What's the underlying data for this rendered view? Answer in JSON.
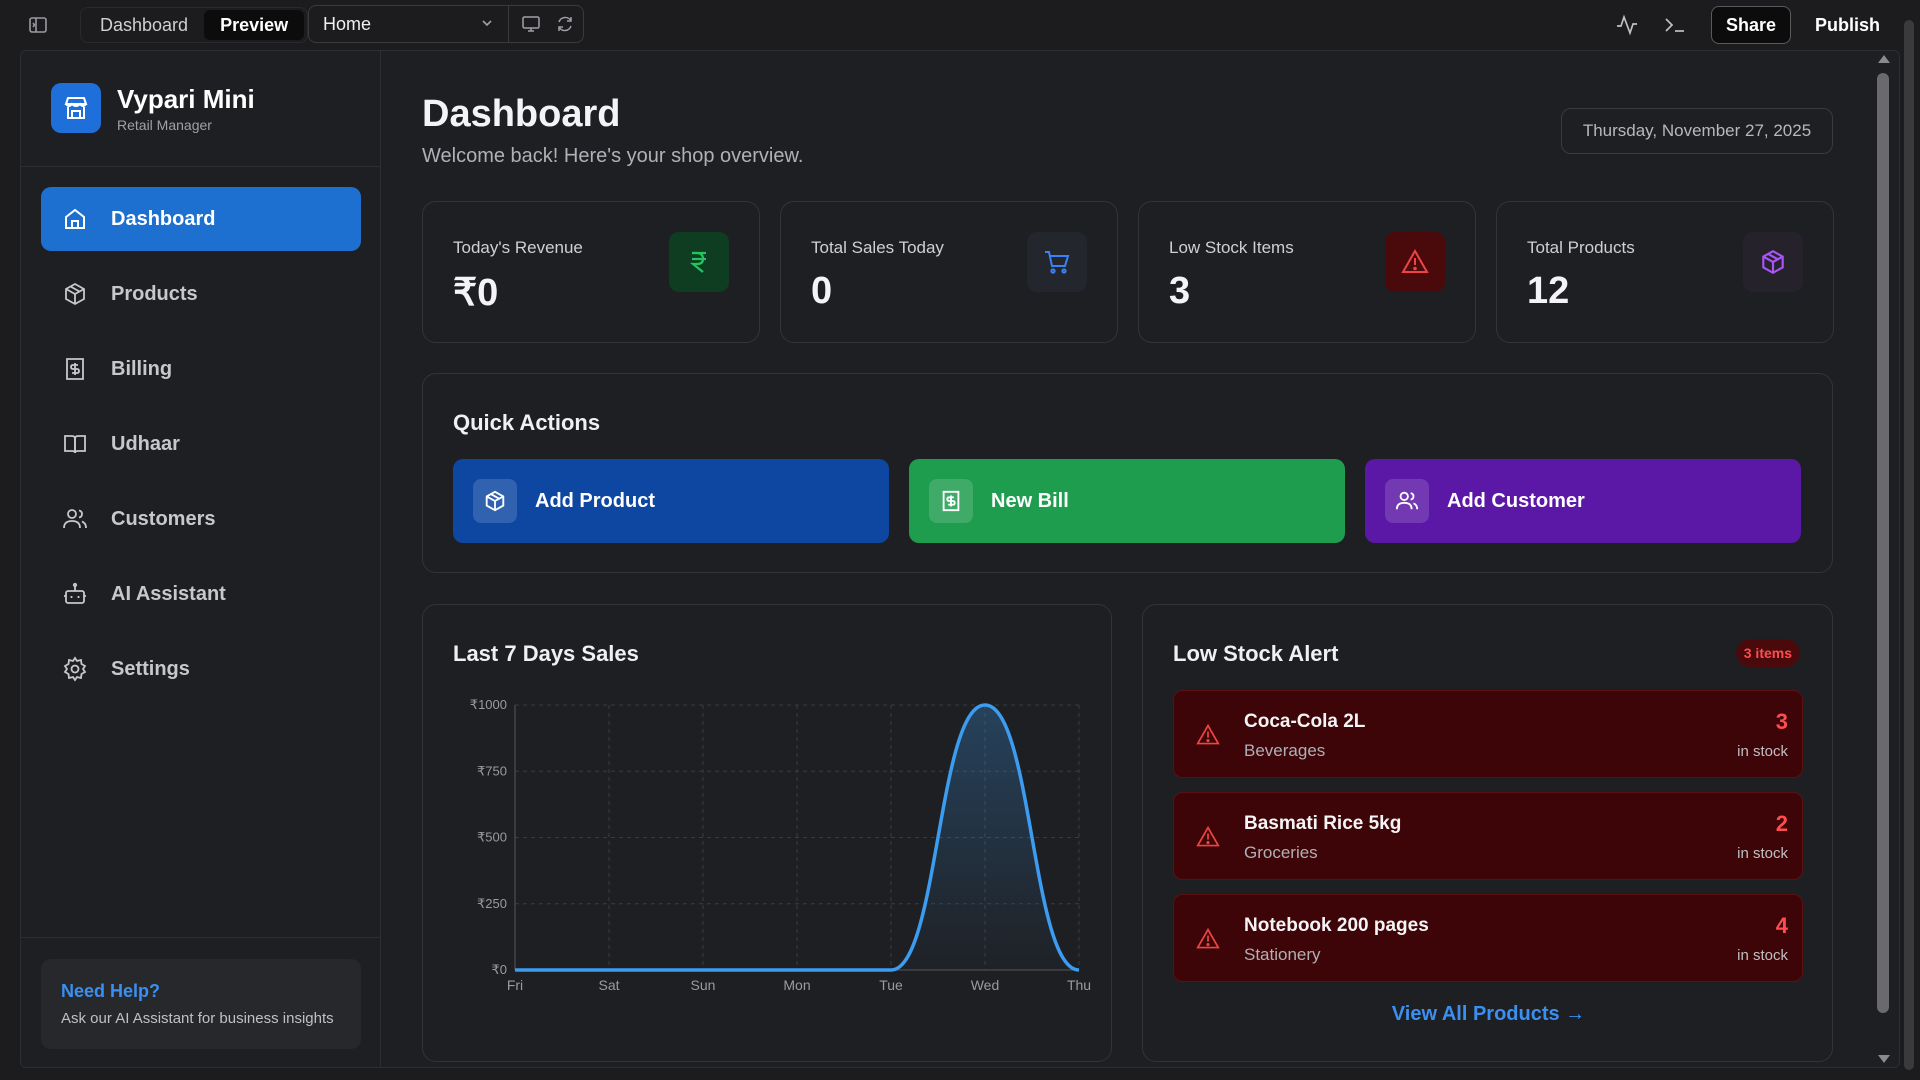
{
  "topbar": {
    "tabs": [
      {
        "label": "Dashboard",
        "active": false
      },
      {
        "label": "Preview",
        "active": true
      }
    ],
    "route": "Home",
    "share_label": "Share",
    "publish_label": "Publish"
  },
  "brand": {
    "name": "Vypari Mini",
    "subtitle": "Retail Manager"
  },
  "sidebar": {
    "items": [
      {
        "label": "Dashboard",
        "icon": "home-icon",
        "active": true
      },
      {
        "label": "Products",
        "icon": "package-icon",
        "active": false
      },
      {
        "label": "Billing",
        "icon": "receipt-icon",
        "active": false
      },
      {
        "label": "Udhaar",
        "icon": "book-icon",
        "active": false
      },
      {
        "label": "Customers",
        "icon": "users-icon",
        "active": false
      },
      {
        "label": "AI Assistant",
        "icon": "bot-icon",
        "active": false
      },
      {
        "label": "Settings",
        "icon": "gear-icon",
        "active": false
      }
    ],
    "help": {
      "title": "Need Help?",
      "text": "Ask our AI Assistant for business insights"
    }
  },
  "header": {
    "title": "Dashboard",
    "subtitle": "Welcome back! Here's your shop overview.",
    "date": "Thursday, November 27, 2025"
  },
  "stats": [
    {
      "label": "Today's Revenue",
      "value": "₹0",
      "icon": "rupee-icon",
      "color": "#22c55e"
    },
    {
      "label": "Total Sales Today",
      "value": "0",
      "icon": "cart-icon",
      "color": "#3b82f6"
    },
    {
      "label": "Low Stock Items",
      "value": "3",
      "icon": "warning-icon",
      "color": "#ef4444"
    },
    {
      "label": "Total Products",
      "value": "12",
      "icon": "package-icon",
      "color": "#a855f7"
    }
  ],
  "quick_actions": {
    "title": "Quick Actions",
    "buttons": [
      {
        "label": "Add Product",
        "icon": "package-icon",
        "color": "#0d47a1"
      },
      {
        "label": "New Bill",
        "icon": "receipt-icon",
        "color": "#1f9d4f"
      },
      {
        "label": "Add Customer",
        "icon": "users-icon",
        "color": "#5b17a6"
      }
    ]
  },
  "sales_chart": {
    "title": "Last 7 Days Sales"
  },
  "chart_data": {
    "type": "area",
    "x": [
      "Fri",
      "Sat",
      "Sun",
      "Mon",
      "Tue",
      "Wed",
      "Thu"
    ],
    "values": [
      0,
      0,
      0,
      0,
      0,
      1000,
      0
    ],
    "yticks": [
      "₹0",
      "₹250",
      "₹500",
      "₹750",
      "₹1000"
    ],
    "ylim": [
      0,
      1000
    ],
    "grid": true,
    "line_color": "#3b9cf0"
  },
  "low_stock": {
    "title": "Low Stock Alert",
    "badge": "3 items",
    "items": [
      {
        "name": "Coca-Cola 2L",
        "category": "Beverages",
        "qty": "3",
        "qty_label": "in stock"
      },
      {
        "name": "Basmati Rice 5kg",
        "category": "Groceries",
        "qty": "2",
        "qty_label": "in stock"
      },
      {
        "name": "Notebook 200 pages",
        "category": "Stationery",
        "qty": "4",
        "qty_label": "in stock"
      }
    ],
    "view_all": "View All Products →"
  }
}
